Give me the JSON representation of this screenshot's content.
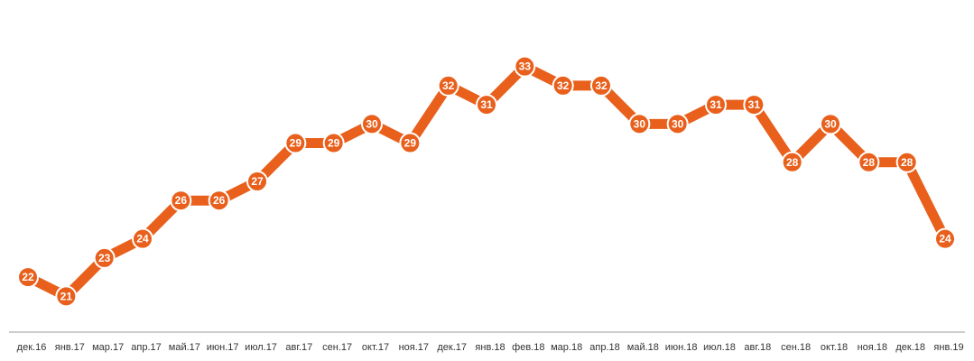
{
  "chart_data": {
    "type": "line",
    "categories": [
      "дек.16",
      "янв.17",
      "мар.17",
      "апр.17",
      "май.17",
      "июн.17",
      "июл.17",
      "авг.17",
      "сен.17",
      "окт.17",
      "ноя.17",
      "дек.17",
      "янв.18",
      "фев.18",
      "мар.18",
      "апр.18",
      "май.18",
      "июн.18",
      "июл.18",
      "авг.18",
      "сен.18",
      "окт.18",
      "ноя.18",
      "дек.18",
      "янв.19"
    ],
    "values": [
      22,
      21,
      23,
      24,
      26,
      26,
      27,
      29,
      29,
      30,
      29,
      32,
      31,
      33,
      32,
      32,
      30,
      30,
      31,
      31,
      28,
      30,
      28,
      28,
      24
    ],
    "ylim": [
      18,
      36
    ],
    "grid": false,
    "data_labels": true,
    "colors": {
      "line": "#E8601C",
      "marker_stroke": "#ffffff",
      "axis": "#999999",
      "tick_text": "#333333"
    }
  }
}
